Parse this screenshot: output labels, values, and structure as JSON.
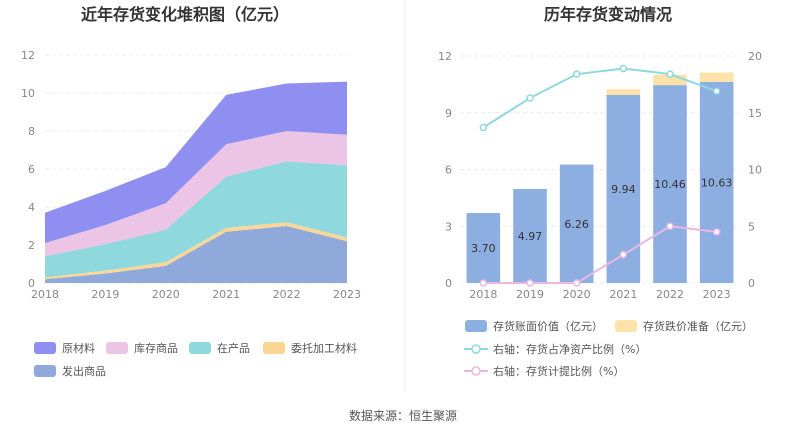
{
  "chart_data": [
    {
      "type": "area",
      "title": "近年存货变化堆积图（亿元）",
      "categories": [
        "2018",
        "2019",
        "2020",
        "2021",
        "2022",
        "2023"
      ],
      "ylim": [
        0,
        12
      ],
      "yticks": [
        "0",
        "2",
        "4",
        "6",
        "8",
        "10",
        "12"
      ],
      "legend_position": "bottom",
      "series": [
        {
          "name": "发出商品",
          "color": "#8fa9db",
          "values": [
            0.2,
            0.5,
            0.9,
            2.7,
            3.0,
            2.2
          ]
        },
        {
          "name": "委托加工材料",
          "color": "#fbd694",
          "values": [
            0.1,
            0.15,
            0.2,
            0.2,
            0.2,
            0.2
          ]
        },
        {
          "name": "在产品",
          "color": "#8fd8dd",
          "values": [
            1.1,
            1.4,
            1.7,
            2.7,
            3.2,
            3.8
          ]
        },
        {
          "name": "库存商品",
          "color": "#ecc4e6",
          "values": [
            0.7,
            1.0,
            1.4,
            1.7,
            1.6,
            1.6
          ]
        },
        {
          "name": "原材料",
          "color": "#8e8ff0",
          "values": [
            1.6,
            1.8,
            1.9,
            2.6,
            2.5,
            2.8
          ]
        }
      ],
      "legend_order": [
        "原材料",
        "库存商品",
        "在产品",
        "委托加工材料",
        "发出商品"
      ]
    },
    {
      "type": "bar",
      "title": "历年存货变动情况",
      "categories": [
        "2018",
        "2019",
        "2020",
        "2021",
        "2022",
        "2023"
      ],
      "ylim": [
        0,
        12
      ],
      "yticks": [
        "0",
        "3",
        "6",
        "9",
        "12"
      ],
      "y2lim": [
        0,
        20
      ],
      "y2ticks": [
        "0",
        "5",
        "10",
        "15",
        "20"
      ],
      "legend_position": "bottom",
      "series": [
        {
          "name": "存货账面价值（亿元）",
          "color": "#8daee0",
          "axis": "left",
          "kind": "bar",
          "values": [
            3.7,
            4.97,
            6.26,
            9.94,
            10.46,
            10.63
          ],
          "labels": [
            "3.70",
            "4.97",
            "6.26",
            "9.94",
            "10.46",
            "10.63"
          ]
        },
        {
          "name": "存货跌价准备（亿元）",
          "color": "#fde2a9",
          "axis": "left",
          "kind": "bar",
          "values": [
            0,
            0,
            0,
            0.3,
            0.55,
            0.5
          ]
        },
        {
          "name": "右轴：存货占净资产比例（%）",
          "color": "#8fd8dd",
          "axis": "right",
          "kind": "line",
          "values": [
            13.7,
            16.3,
            18.4,
            18.9,
            18.4,
            16.9
          ]
        },
        {
          "name": "右轴：存货计提比例（%）",
          "color": "#e9b7e3",
          "axis": "right",
          "kind": "line",
          "values": [
            0,
            0,
            0,
            2.5,
            5.0,
            4.5
          ]
        }
      ]
    }
  ],
  "footer": {
    "source": "数据来源：恒生聚源"
  }
}
